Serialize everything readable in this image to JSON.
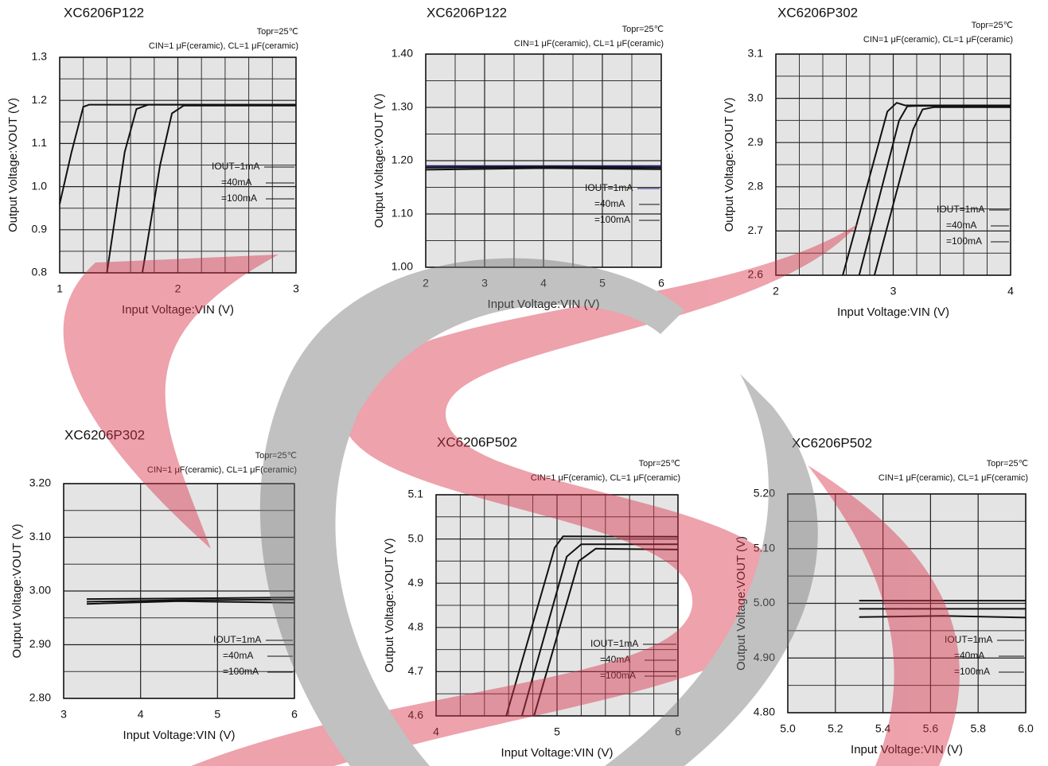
{
  "chart_data": [
    {
      "type": "line",
      "title": "XC6206P122",
      "condition": "Topr=25℃",
      "capacitors": "CIN=1 μF(ceramic), CL=1 μF(ceramic)",
      "xlabel": "Input Voltage:VIN (V)",
      "ylabel": "Output Voltage:VOUT (V)",
      "xlim": [
        1,
        3
      ],
      "xticks": [
        1,
        2,
        3
      ],
      "ylim": [
        0.8,
        1.3
      ],
      "yticks": [
        0.8,
        0.9,
        {
          "value": 1,
          "label": "1.0"
        },
        1.1,
        1.2,
        1.3
      ],
      "grid": true,
      "grid_divisions": {
        "x": 5,
        "y": 2
      },
      "legend": "right",
      "series": [
        {
          "name": "IOUT=1mA",
          "color": "#111111",
          "x": [
            1,
            1.1,
            1.2,
            1.25,
            3
          ],
          "values": [
            0.96,
            1.08,
            1.185,
            1.19,
            1.19
          ]
        },
        {
          "name": "=40mA",
          "color": "#111111",
          "x": [
            1.4,
            1.55,
            1.65,
            1.75,
            3
          ],
          "values": [
            0.8,
            1.08,
            1.18,
            1.19,
            1.19
          ]
        },
        {
          "name": "=100mA",
          "color": "#111111",
          "x": [
            1.7,
            1.85,
            1.95,
            2.05,
            3
          ],
          "values": [
            0.8,
            1.05,
            1.17,
            1.188,
            1.188
          ]
        }
      ]
    },
    {
      "type": "line",
      "title": "XC6206P122",
      "condition": "Topr=25℃",
      "capacitors": "CIN=1 μF(ceramic), CL=1 μF(ceramic)",
      "xlabel": "Input Voltage:VIN (V)",
      "ylabel": "Output Voltage:VOUT (V)",
      "xlim": [
        2,
        6
      ],
      "xticks": [
        2,
        3,
        4,
        5,
        6
      ],
      "ylim": [
        1,
        1.4
      ],
      "yticks": [
        {
          "value": 1,
          "label": "1.00"
        },
        {
          "value": 1.1,
          "label": "1.10"
        },
        {
          "value": 1.2,
          "label": "1.20"
        },
        {
          "value": 1.3,
          "label": "1.30"
        },
        {
          "value": 1.4,
          "label": "1.40"
        }
      ],
      "grid": true,
      "grid_divisions": {
        "x": 2,
        "y": 2
      },
      "legend": "right",
      "series": [
        {
          "name": "IOUT=1mA",
          "color": "#1a1a6e",
          "x": [
            2,
            4,
            6
          ],
          "values": [
            1.19,
            1.19,
            1.19
          ]
        },
        {
          "name": "=40mA",
          "color": "#111111",
          "x": [
            2,
            4,
            6
          ],
          "values": [
            1.187,
            1.188,
            1.187
          ]
        },
        {
          "name": "=100mA",
          "color": "#111111",
          "x": [
            2,
            4,
            6
          ],
          "values": [
            1.183,
            1.186,
            1.184
          ]
        }
      ]
    },
    {
      "type": "line",
      "title": "XC6206P302",
      "condition": "Topr=25℃",
      "capacitors": "CIN=1 μF(ceramic), CL=1 μF(ceramic)",
      "xlabel": "Input Voltage:VIN (V)",
      "ylabel": "Output Voltage:VOUT (V)",
      "xlim": [
        2,
        4
      ],
      "xticks": [
        2,
        3,
        4
      ],
      "ylim": [
        2.6,
        3.1
      ],
      "yticks": [
        2.6,
        2.7,
        2.8,
        2.9,
        {
          "value": 3,
          "label": "3.0"
        },
        3.1
      ],
      "grid": true,
      "grid_divisions": {
        "x": 5,
        "y": 2
      },
      "legend": "right",
      "series": [
        {
          "name": "IOUT=1mA",
          "color": "#111111",
          "x": [
            2.57,
            2.95,
            3.03,
            3.1,
            4
          ],
          "values": [
            2.6,
            2.97,
            2.99,
            2.984,
            2.984
          ]
        },
        {
          "name": "=40mA",
          "color": "#111111",
          "x": [
            2.71,
            3.05,
            3.12,
            3.2,
            4
          ],
          "values": [
            2.6,
            2.95,
            2.982,
            2.983,
            2.983
          ]
        },
        {
          "name": "=100mA",
          "color": "#111111",
          "x": [
            2.84,
            3.17,
            3.25,
            3.35,
            4
          ],
          "values": [
            2.6,
            2.93,
            2.975,
            2.98,
            2.98
          ]
        }
      ]
    },
    {
      "type": "line",
      "title": "XC6206P302",
      "condition": "Topr=25℃",
      "capacitors": "CIN=1 μF(ceramic), CL=1 μF(ceramic)",
      "xlabel": "Input Voltage:VIN (V)",
      "ylabel": "Output Voltage:VOUT (V)",
      "xlim": [
        3,
        6
      ],
      "xticks": [
        3,
        4,
        5,
        6
      ],
      "ylim": [
        2.8,
        3.2
      ],
      "yticks": [
        {
          "value": 2.8,
          "label": "2.80"
        },
        {
          "value": 2.9,
          "label": "2.90"
        },
        {
          "value": 3,
          "label": "3.00"
        },
        {
          "value": 3.1,
          "label": "3.10"
        },
        {
          "value": 3.2,
          "label": "3.20"
        }
      ],
      "grid": true,
      "grid_divisions": {
        "x": 1,
        "y": 2
      },
      "legend": "right",
      "series": [
        {
          "name": "IOUT=1mA",
          "color": "#111111",
          "x": [
            3.3,
            4.5,
            6
          ],
          "values": [
            2.985,
            2.986,
            2.988
          ]
        },
        {
          "name": "=40mA",
          "color": "#111111",
          "x": [
            3.3,
            4.5,
            6
          ],
          "values": [
            2.98,
            2.983,
            2.984
          ]
        },
        {
          "name": "=100mA",
          "color": "#111111",
          "x": [
            3.3,
            4.5,
            6
          ],
          "values": [
            2.976,
            2.981,
            2.978
          ]
        }
      ]
    },
    {
      "type": "line",
      "title": "XC6206P502",
      "condition": "Topr=25℃",
      "capacitors": "CIN=1 μF(ceramic), CL=1 μF(ceramic)",
      "xlabel": "Input Voltage:VIN (V)",
      "ylabel": "Output Voltage:VOUT (V)",
      "xlim": [
        4,
        6
      ],
      "xticks": [
        4,
        5,
        6
      ],
      "ylim": [
        4.6,
        5.1
      ],
      "yticks": [
        4.6,
        4.7,
        4.8,
        4.9,
        {
          "value": 5,
          "label": "5.0"
        },
        5.1
      ],
      "grid": true,
      "grid_divisions": {
        "x": 5,
        "y": 2
      },
      "legend": "right",
      "series": [
        {
          "name": "IOUT=1mA",
          "color": "#111111",
          "x": [
            4.58,
            4.98,
            5.05,
            6
          ],
          "values": [
            4.6,
            4.98,
            5.006,
            5.005
          ]
        },
        {
          "name": "=40mA",
          "color": "#111111",
          "x": [
            4.71,
            5.08,
            5.2,
            6
          ],
          "values": [
            4.6,
            4.96,
            4.988,
            4.988
          ]
        },
        {
          "name": "=100mA",
          "color": "#111111",
          "x": [
            4.81,
            5.18,
            5.32,
            6
          ],
          "values": [
            4.6,
            4.95,
            4.978,
            4.976
          ]
        }
      ]
    },
    {
      "type": "line",
      "title": "XC6206P502",
      "condition": "Topr=25℃",
      "capacitors": "CIN=1 μF(ceramic), CL=1 μF(ceramic)",
      "xlabel": "Input Voltage:VIN (V)",
      "ylabel": "Output Voltage:VOUT (V)",
      "xlim": [
        5,
        6
      ],
      "xticks": [
        {
          "value": 5,
          "label": "5.0"
        },
        5.2,
        5.4,
        5.6,
        5.8,
        {
          "value": 6,
          "label": "6.0"
        }
      ],
      "ylim": [
        4.8,
        5.2
      ],
      "yticks": [
        {
          "value": 4.8,
          "label": "4.80"
        },
        {
          "value": 4.9,
          "label": "4.90"
        },
        {
          "value": 5,
          "label": "5.00"
        },
        {
          "value": 5.1,
          "label": "5.10"
        },
        {
          "value": 5.2,
          "label": "5.20"
        }
      ],
      "grid": true,
      "grid_divisions": {
        "x": 1,
        "y": 2
      },
      "legend": "right",
      "series": [
        {
          "name": "IOUT=1mA",
          "color": "#111111",
          "x": [
            5.3,
            5.65,
            6
          ],
          "values": [
            5.005,
            5.005,
            5.005
          ]
        },
        {
          "name": "=40mA",
          "color": "#111111",
          "x": [
            5.3,
            5.65,
            6
          ],
          "values": [
            4.99,
            4.99,
            4.99
          ]
        },
        {
          "name": "=100mA",
          "color": "#111111",
          "x": [
            5.3,
            5.65,
            6
          ],
          "values": [
            4.975,
            4.977,
            4.974
          ]
        }
      ]
    }
  ]
}
